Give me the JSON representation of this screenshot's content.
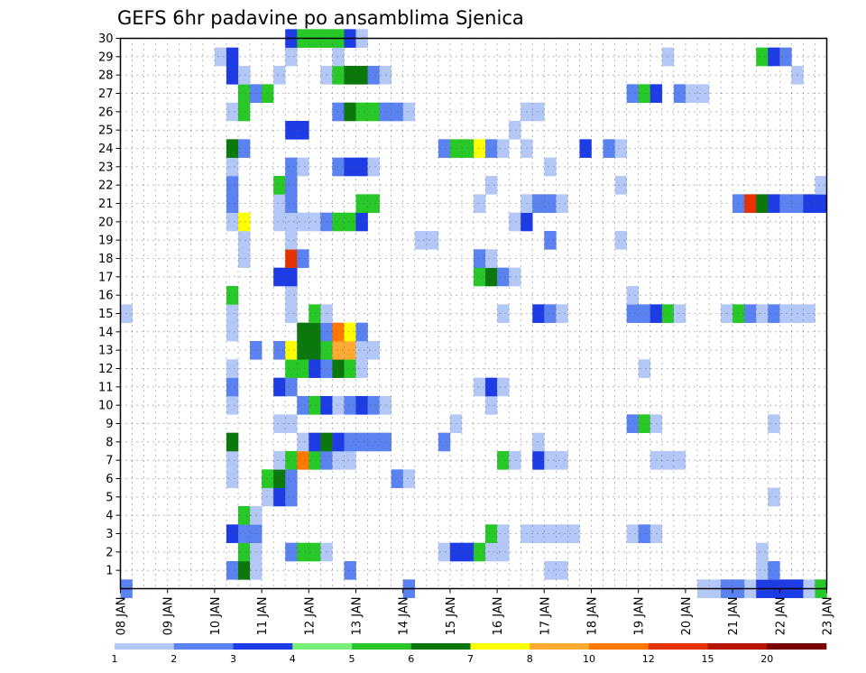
{
  "chart_data": {
    "type": "heatmap",
    "title": "GEFS 6hr padavine po ansamblima Sjenica",
    "xlabel": "",
    "ylabel": "",
    "x_ticks": [
      "08 JAN",
      "09 JAN",
      "10 JAN",
      "11 JAN",
      "12 JAN",
      "13 JAN",
      "14 JAN",
      "15 JAN",
      "16 JAN",
      "17 JAN",
      "18 JAN",
      "19 JAN",
      "20 JAN",
      "21 JAN",
      "22 JAN",
      "23 JAN"
    ],
    "xlim": [
      0,
      60
    ],
    "y_ticks": [
      1,
      2,
      3,
      4,
      5,
      6,
      7,
      8,
      9,
      10,
      11,
      12,
      13,
      14,
      15,
      16,
      17,
      18,
      19,
      20,
      21,
      22,
      23,
      24,
      25,
      26,
      27,
      28,
      29,
      30
    ],
    "ylim": [
      0,
      30
    ],
    "grid": true,
    "legend": {
      "placement": "bottom",
      "levels": [
        "1",
        "2",
        "3",
        "4",
        "5",
        "6",
        "7",
        "8",
        "10",
        "12",
        "15",
        "20"
      ],
      "colors": [
        "#b4c8f8",
        "#5a82f0",
        "#1e3ce6",
        "#78f078",
        "#28c828",
        "#0a780a",
        "#ffff00",
        "#ffaa32",
        "#ff7800",
        "#e63200",
        "#b41400",
        "#780000"
      ]
    },
    "cells": [
      [
        0,
        0,
        2
      ],
      [
        24,
        0,
        2
      ],
      [
        49,
        0,
        1
      ],
      [
        50,
        0,
        1
      ],
      [
        51,
        0,
        2
      ],
      [
        52,
        0,
        2
      ],
      [
        53,
        0,
        1
      ],
      [
        54,
        0,
        3
      ],
      [
        55,
        0,
        3
      ],
      [
        56,
        0,
        3
      ],
      [
        57,
        0,
        3
      ],
      [
        58,
        0,
        1
      ],
      [
        59,
        0,
        5
      ],
      [
        9,
        1,
        2
      ],
      [
        10,
        1,
        6
      ],
      [
        11,
        1,
        1
      ],
      [
        19,
        1,
        2
      ],
      [
        36,
        1,
        1
      ],
      [
        37,
        1,
        1
      ],
      [
        54,
        1,
        1
      ],
      [
        55,
        1,
        2
      ],
      [
        10,
        2,
        5
      ],
      [
        11,
        2,
        1
      ],
      [
        14,
        2,
        2
      ],
      [
        15,
        2,
        5
      ],
      [
        16,
        2,
        5
      ],
      [
        17,
        2,
        1
      ],
      [
        27,
        2,
        1
      ],
      [
        28,
        2,
        3
      ],
      [
        29,
        2,
        3
      ],
      [
        30,
        2,
        5
      ],
      [
        31,
        2,
        1
      ],
      [
        32,
        2,
        1
      ],
      [
        54,
        2,
        1
      ],
      [
        9,
        3,
        3
      ],
      [
        10,
        3,
        2
      ],
      [
        11,
        3,
        2
      ],
      [
        31,
        3,
        5
      ],
      [
        32,
        3,
        1
      ],
      [
        34,
        3,
        1
      ],
      [
        35,
        3,
        1
      ],
      [
        36,
        3,
        1
      ],
      [
        37,
        3,
        1
      ],
      [
        38,
        3,
        1
      ],
      [
        43,
        3,
        1
      ],
      [
        44,
        3,
        2
      ],
      [
        45,
        3,
        1
      ],
      [
        10,
        4,
        5
      ],
      [
        11,
        4,
        1
      ],
      [
        12,
        5,
        1
      ],
      [
        13,
        5,
        3
      ],
      [
        14,
        5,
        2
      ],
      [
        55,
        5,
        1
      ],
      [
        9,
        6,
        1
      ],
      [
        12,
        6,
        5
      ],
      [
        13,
        6,
        6
      ],
      [
        14,
        6,
        2
      ],
      [
        23,
        6,
        2
      ],
      [
        24,
        6,
        1
      ],
      [
        9,
        7,
        1
      ],
      [
        13,
        7,
        1
      ],
      [
        14,
        7,
        5
      ],
      [
        15,
        7,
        9
      ],
      [
        16,
        7,
        5
      ],
      [
        17,
        7,
        2
      ],
      [
        18,
        7,
        1
      ],
      [
        19,
        7,
        1
      ],
      [
        32,
        7,
        5
      ],
      [
        33,
        7,
        1
      ],
      [
        35,
        7,
        3
      ],
      [
        36,
        7,
        1
      ],
      [
        37,
        7,
        1
      ],
      [
        45,
        7,
        1
      ],
      [
        46,
        7,
        1
      ],
      [
        47,
        7,
        1
      ],
      [
        9,
        8,
        6
      ],
      [
        15,
        8,
        1
      ],
      [
        16,
        8,
        3
      ],
      [
        17,
        8,
        6
      ],
      [
        18,
        8,
        3
      ],
      [
        19,
        8,
        2
      ],
      [
        20,
        8,
        2
      ],
      [
        21,
        8,
        2
      ],
      [
        22,
        8,
        2
      ],
      [
        27,
        8,
        2
      ],
      [
        35,
        8,
        1
      ],
      [
        13,
        9,
        1
      ],
      [
        14,
        9,
        1
      ],
      [
        28,
        9,
        1
      ],
      [
        43,
        9,
        2
      ],
      [
        44,
        9,
        5
      ],
      [
        45,
        9,
        1
      ],
      [
        55,
        9,
        1
      ],
      [
        9,
        10,
        1
      ],
      [
        15,
        10,
        2
      ],
      [
        16,
        10,
        5
      ],
      [
        17,
        10,
        3
      ],
      [
        18,
        10,
        1
      ],
      [
        19,
        10,
        2
      ],
      [
        20,
        10,
        3
      ],
      [
        21,
        10,
        2
      ],
      [
        22,
        10,
        1
      ],
      [
        31,
        10,
        1
      ],
      [
        9,
        11,
        2
      ],
      [
        13,
        11,
        3
      ],
      [
        14,
        11,
        2
      ],
      [
        30,
        11,
        1
      ],
      [
        31,
        11,
        3
      ],
      [
        32,
        11,
        1
      ],
      [
        9,
        12,
        1
      ],
      [
        14,
        12,
        5
      ],
      [
        15,
        12,
        5
      ],
      [
        16,
        12,
        3
      ],
      [
        17,
        12,
        2
      ],
      [
        18,
        12,
        6
      ],
      [
        19,
        12,
        5
      ],
      [
        20,
        12,
        1
      ],
      [
        44,
        12,
        1
      ],
      [
        11,
        13,
        2
      ],
      [
        13,
        13,
        2
      ],
      [
        14,
        13,
        7
      ],
      [
        15,
        13,
        6
      ],
      [
        16,
        13,
        6
      ],
      [
        17,
        13,
        5
      ],
      [
        18,
        13,
        8
      ],
      [
        19,
        13,
        8
      ],
      [
        20,
        13,
        1
      ],
      [
        21,
        13,
        1
      ],
      [
        9,
        14,
        1
      ],
      [
        15,
        14,
        6
      ],
      [
        16,
        14,
        6
      ],
      [
        17,
        14,
        2
      ],
      [
        18,
        14,
        9
      ],
      [
        19,
        14,
        7
      ],
      [
        20,
        14,
        2
      ],
      [
        0,
        15,
        1
      ],
      [
        9,
        15,
        1
      ],
      [
        14,
        15,
        1
      ],
      [
        16,
        15,
        5
      ],
      [
        17,
        15,
        1
      ],
      [
        32,
        15,
        1
      ],
      [
        35,
        15,
        3
      ],
      [
        36,
        15,
        2
      ],
      [
        37,
        15,
        1
      ],
      [
        43,
        15,
        2
      ],
      [
        44,
        15,
        2
      ],
      [
        45,
        15,
        3
      ],
      [
        46,
        15,
        5
      ],
      [
        47,
        15,
        1
      ],
      [
        51,
        15,
        1
      ],
      [
        52,
        15,
        5
      ],
      [
        53,
        15,
        2
      ],
      [
        54,
        15,
        1
      ],
      [
        55,
        15,
        2
      ],
      [
        56,
        15,
        1
      ],
      [
        57,
        15,
        1
      ],
      [
        58,
        15,
        1
      ],
      [
        9,
        16,
        5
      ],
      [
        14,
        16,
        1
      ],
      [
        43,
        16,
        1
      ],
      [
        13,
        17,
        3
      ],
      [
        14,
        17,
        3
      ],
      [
        30,
        17,
        5
      ],
      [
        31,
        17,
        6
      ],
      [
        32,
        17,
        2
      ],
      [
        33,
        17,
        1
      ],
      [
        10,
        18,
        1
      ],
      [
        14,
        18,
        10
      ],
      [
        15,
        18,
        2
      ],
      [
        30,
        18,
        2
      ],
      [
        31,
        18,
        1
      ],
      [
        10,
        19,
        1
      ],
      [
        14,
        19,
        1
      ],
      [
        25,
        19,
        1
      ],
      [
        26,
        19,
        1
      ],
      [
        36,
        19,
        2
      ],
      [
        42,
        19,
        1
      ],
      [
        9,
        20,
        1
      ],
      [
        10,
        20,
        7
      ],
      [
        13,
        20,
        1
      ],
      [
        14,
        20,
        1
      ],
      [
        15,
        20,
        1
      ],
      [
        16,
        20,
        1
      ],
      [
        17,
        20,
        2
      ],
      [
        18,
        20,
        5
      ],
      [
        19,
        20,
        5
      ],
      [
        20,
        20,
        3
      ],
      [
        33,
        20,
        1
      ],
      [
        34,
        20,
        3
      ],
      [
        9,
        21,
        2
      ],
      [
        13,
        21,
        1
      ],
      [
        14,
        21,
        2
      ],
      [
        20,
        21,
        5
      ],
      [
        21,
        21,
        5
      ],
      [
        30,
        21,
        1
      ],
      [
        34,
        21,
        1
      ],
      [
        35,
        21,
        2
      ],
      [
        36,
        21,
        2
      ],
      [
        37,
        21,
        1
      ],
      [
        52,
        21,
        2
      ],
      [
        53,
        21,
        10
      ],
      [
        54,
        21,
        6
      ],
      [
        55,
        21,
        3
      ],
      [
        56,
        21,
        2
      ],
      [
        57,
        21,
        2
      ],
      [
        58,
        21,
        3
      ],
      [
        59,
        21,
        3
      ],
      [
        9,
        22,
        2
      ],
      [
        13,
        22,
        5
      ],
      [
        14,
        22,
        2
      ],
      [
        31,
        22,
        1
      ],
      [
        42,
        22,
        1
      ],
      [
        59,
        22,
        1
      ],
      [
        9,
        23,
        1
      ],
      [
        14,
        23,
        2
      ],
      [
        15,
        23,
        1
      ],
      [
        18,
        23,
        2
      ],
      [
        19,
        23,
        3
      ],
      [
        20,
        23,
        3
      ],
      [
        21,
        23,
        1
      ],
      [
        36,
        23,
        1
      ],
      [
        9,
        24,
        6
      ],
      [
        10,
        24,
        2
      ],
      [
        27,
        24,
        2
      ],
      [
        28,
        24,
        5
      ],
      [
        29,
        24,
        5
      ],
      [
        30,
        24,
        7
      ],
      [
        31,
        24,
        2
      ],
      [
        32,
        24,
        1
      ],
      [
        34,
        24,
        1
      ],
      [
        39,
        24,
        3
      ],
      [
        41,
        24,
        2
      ],
      [
        42,
        24,
        1
      ],
      [
        14,
        25,
        3
      ],
      [
        15,
        25,
        3
      ],
      [
        33,
        25,
        1
      ],
      [
        9,
        26,
        1
      ],
      [
        10,
        26,
        5
      ],
      [
        18,
        26,
        2
      ],
      [
        19,
        26,
        6
      ],
      [
        20,
        26,
        5
      ],
      [
        21,
        26,
        5
      ],
      [
        22,
        26,
        2
      ],
      [
        23,
        26,
        2
      ],
      [
        24,
        26,
        1
      ],
      [
        34,
        26,
        1
      ],
      [
        35,
        26,
        1
      ],
      [
        10,
        27,
        5
      ],
      [
        11,
        27,
        2
      ],
      [
        12,
        27,
        5
      ],
      [
        43,
        27,
        2
      ],
      [
        44,
        27,
        5
      ],
      [
        45,
        27,
        3
      ],
      [
        47,
        27,
        2
      ],
      [
        48,
        27,
        1
      ],
      [
        49,
        27,
        1
      ],
      [
        9,
        28,
        3
      ],
      [
        10,
        28,
        1
      ],
      [
        13,
        28,
        1
      ],
      [
        17,
        28,
        1
      ],
      [
        18,
        28,
        5
      ],
      [
        19,
        28,
        6
      ],
      [
        20,
        28,
        6
      ],
      [
        21,
        28,
        2
      ],
      [
        22,
        28,
        1
      ],
      [
        57,
        28,
        1
      ],
      [
        8,
        29,
        1
      ],
      [
        9,
        29,
        3
      ],
      [
        14,
        29,
        1
      ],
      [
        18,
        29,
        1
      ],
      [
        46,
        29,
        1
      ],
      [
        54,
        29,
        5
      ],
      [
        55,
        29,
        3
      ],
      [
        56,
        29,
        2
      ],
      [
        14,
        30,
        3
      ],
      [
        15,
        30,
        5
      ],
      [
        16,
        30,
        5
      ],
      [
        17,
        30,
        5
      ],
      [
        18,
        30,
        5
      ],
      [
        19,
        30,
        3
      ],
      [
        20,
        30,
        1
      ]
    ]
  }
}
